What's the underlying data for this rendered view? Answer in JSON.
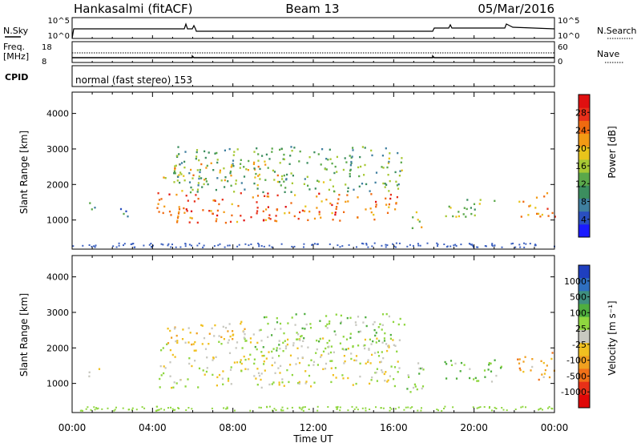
{
  "header": {
    "station": "Hankasalmi (fitACF)",
    "beam": "Beam 13",
    "date": "05/Mar/2016"
  },
  "panels": {
    "nsky": {
      "label": "N.Sky",
      "ticks": [
        "10^5",
        "10^0"
      ],
      "right_label": "N.Search",
      "right_ticks": [
        "10^5",
        "10^0"
      ]
    },
    "freq": {
      "label_line1": "Freq.",
      "label_line2": "[MHz]",
      "ticks": [
        "18",
        "8"
      ],
      "right_label": "Nave",
      "right_ticks": [
        "60",
        "0"
      ]
    },
    "cpid": {
      "label": "CPID",
      "text": "normal (fast stereo) 153"
    },
    "power": {
      "ylabel": "Slant Range [km]",
      "cbar_label": "Power [dB]"
    },
    "velocity": {
      "ylabel": "Slant Range [km]",
      "cbar_label": "Velocity [m s⁻¹]"
    }
  },
  "axes": {
    "x_label": "Time UT",
    "x_ticks": [
      "00:00",
      "04:00",
      "08:00",
      "12:00",
      "16:00",
      "20:00",
      "00:00"
    ],
    "y_ticks": [
      "1000",
      "2000",
      "3000",
      "4000"
    ]
  },
  "colorbars": {
    "power": {
      "ticks": [
        "4",
        "8",
        "12",
        "16",
        "20",
        "24",
        "28"
      ],
      "colors": [
        "#1a1aff",
        "#2a4fbf",
        "#3f7f9f",
        "#3c8e5f",
        "#5aa84a",
        "#a7c834",
        "#e8c41b",
        "#f39a14",
        "#f06a10",
        "#e8301a",
        "#e01010"
      ]
    },
    "velocity": {
      "ticks": [
        "1000",
        "500",
        "100",
        "25",
        "-25",
        "-100",
        "-500",
        "-1000"
      ],
      "colors": [
        "#1f3fbf",
        "#2f6fbf",
        "#3f8f7f",
        "#4fae3f",
        "#8fd63f",
        "#c8c8c0",
        "#f0c020",
        "#f0a020",
        "#f07018",
        "#e83018",
        "#e00808"
      ]
    }
  },
  "chart_data": [
    {
      "type": "heatmap",
      "title": "Power",
      "xlabel": "Time UT",
      "ylabel": "Slant Range [km]",
      "x_range_hours": [
        0,
        24
      ],
      "y_range_km": [
        180,
        4600
      ],
      "colorbar_label": "Power [dB]",
      "colorbar_ticks": [
        4,
        8,
        12,
        16,
        20,
        24,
        28
      ],
      "echo_regions": [
        {
          "t": [
            0.8,
            1.4
          ],
          "r": [
            1150,
            1550
          ],
          "power_db": 12
        },
        {
          "t": [
            2.2,
            3.0
          ],
          "r": [
            1100,
            1450
          ],
          "power_db": 8
        },
        {
          "t": [
            4.2,
            16.2
          ],
          "r": [
            950,
            1800
          ],
          "power_db": 26
        },
        {
          "t": [
            4.5,
            10.5
          ],
          "r": [
            2100,
            2700
          ],
          "power_db": 20
        },
        {
          "t": [
            5.0,
            16.5
          ],
          "r": [
            1800,
            3100
          ],
          "power_db": 12
        },
        {
          "t": [
            16.8,
            17.5
          ],
          "r": [
            700,
            1300
          ],
          "power_db": 16
        },
        {
          "t": [
            18.5,
            21.0
          ],
          "r": [
            1050,
            1600
          ],
          "power_db": 14
        },
        {
          "t": [
            22.2,
            24.0
          ],
          "r": [
            1100,
            1800
          ],
          "power_db": 24
        }
      ]
    },
    {
      "type": "heatmap",
      "title": "Velocity",
      "xlabel": "Time UT",
      "ylabel": "Slant Range [km]",
      "x_range_hours": [
        0,
        24
      ],
      "y_range_km": [
        180,
        4600
      ],
      "colorbar_label": "Velocity [m s⁻¹]",
      "colorbar_ticks": [
        1000,
        500,
        100,
        25,
        -25,
        -100,
        -500,
        -1000
      ],
      "echo_regions": [
        {
          "t": [
            0.8,
            1.4
          ],
          "r": [
            1150,
            1550
          ],
          "velocity_ms": 0
        },
        {
          "t": [
            4.3,
            16.2
          ],
          "r": [
            900,
            2300
          ],
          "velocity_ms": 0
        },
        {
          "t": [
            4.5,
            9.0
          ],
          "r": [
            2100,
            2800
          ],
          "velocity_ms": -150
        },
        {
          "t": [
            9.0,
            16.5
          ],
          "r": [
            1900,
            3000
          ],
          "velocity_ms": 200
        },
        {
          "t": [
            16.2,
            17.5
          ],
          "r": [
            700,
            1600
          ],
          "velocity_ms": 150
        },
        {
          "t": [
            18.5,
            21.5
          ],
          "r": [
            1050,
            1700
          ],
          "velocity_ms": 300
        },
        {
          "t": [
            22.0,
            24.0
          ],
          "r": [
            1100,
            1900
          ],
          "velocity_ms": -300
        }
      ]
    }
  ]
}
